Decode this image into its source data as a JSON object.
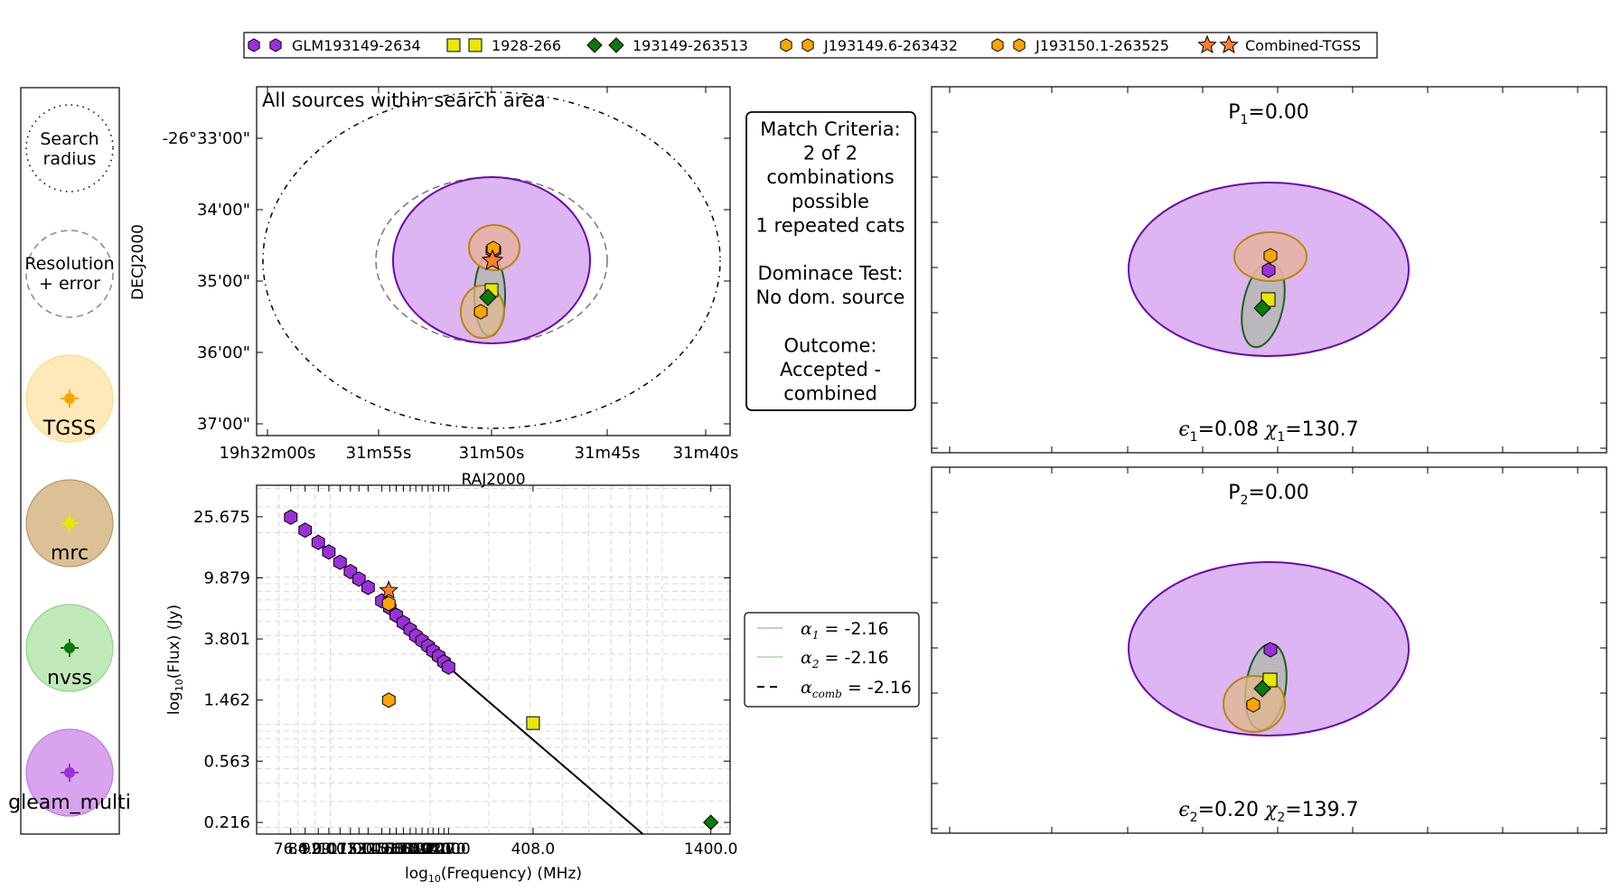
{
  "legend_top": [
    {
      "label": "GLM193149-2634",
      "marker": "hexagon",
      "color": "#9b30d9"
    },
    {
      "label": "1928-266",
      "marker": "square",
      "color": "#e8e800"
    },
    {
      "label": "193149-263513",
      "marker": "diamond",
      "color": "#0a7a0a"
    },
    {
      "label": "J193149.6-263432",
      "marker": "hexagon",
      "color": "#ffa500"
    },
    {
      "label": "J193150.1-263525",
      "marker": "hexagon",
      "color": "#ffa500"
    },
    {
      "label": "Combined-TGSS",
      "marker": "star",
      "color": "#ff7f2a"
    }
  ],
  "left_key": {
    "search": "Search radius",
    "search_lines": [
      "Search",
      "radius"
    ],
    "resolution": "Resolution + error",
    "resolution_lines": [
      "Resolution",
      "+ error"
    ],
    "catalogues": [
      {
        "name": "TGSS",
        "fill": "#ffe9b8",
        "edge": "#ffd98c",
        "marker": "#ffa500"
      },
      {
        "name": "mrc",
        "fill": "#dbc195",
        "edge": "#b8976a",
        "marker": "#e8e800"
      },
      {
        "name": "nvss",
        "fill": "#c1e8b8",
        "edge": "#8cd48c",
        "marker": "#0a7a0a"
      },
      {
        "name": "gleam_multi",
        "fill": "#d9a3ee",
        "edge": "#c27ae0",
        "marker": "#9b30d9"
      }
    ]
  },
  "sky_plot": {
    "title": "All sources within search area",
    "xlabel": "RAJ2000",
    "ylabel": "DECJ2000",
    "xticks": [
      "19h32m00s",
      "31m55s",
      "31m50s",
      "31m45s",
      "31m40s"
    ],
    "yticks": [
      "-26°33'00\"",
      "34'00\"",
      "35'00\"",
      "36'00\"",
      "37'00\""
    ]
  },
  "match_box": {
    "lines": [
      "Match Criteria:",
      "2 of 2",
      "combinations",
      "possible",
      "1 repeated cats",
      "",
      "Dominace Test:",
      "No dom. source",
      "",
      "Outcome:",
      "Accepted -",
      "combined"
    ]
  },
  "combo_panels": [
    {
      "p_label": "P",
      "p_sub": "1",
      "p_value": "=0.00",
      "eps_sub": "1",
      "eps_value": "=0.08",
      "chi_sub": "1",
      "chi_value": "=130.7"
    },
    {
      "p_label": "P",
      "p_sub": "2",
      "p_value": "=0.00",
      "eps_sub": "2",
      "eps_value": "=0.20",
      "chi_sub": "2",
      "chi_value": "=139.7"
    }
  ],
  "spectrum_legend": [
    {
      "symbol": "α",
      "sub": "1",
      "value": " = -2.16",
      "style": "blue-line"
    },
    {
      "symbol": "α",
      "sub": "2",
      "value": " = -2.16",
      "style": "green-line"
    },
    {
      "symbol": "α",
      "sub": "comb",
      "value": " = -2.16",
      "style": "dashed-black"
    }
  ],
  "chart_data": {
    "type": "scatter",
    "xlabel_pre": "log",
    "xlabel_sub": "10",
    "xlabel_post": "(Frequency) (MHz)",
    "ylabel_pre": "log",
    "ylabel_sub": "10",
    "ylabel_post": "(Flux) (Jy)",
    "x_scale": "log",
    "y_scale": "log",
    "xlim": [
      60,
      1600
    ],
    "ylim": [
      0.18,
      42
    ],
    "xtick_labels": [
      "76.0",
      "84.0",
      "92.0",
      "99.0",
      "107.0",
      "115.0",
      "122.0",
      "130.0",
      "143.0",
      "151.0",
      "158.0",
      "166.0",
      "174.0",
      "181.0",
      "189.0",
      "197.0",
      "204.0",
      "212.0",
      "220.0",
      "227.0",
      "408.0",
      "1400.0"
    ],
    "xtick_values": [
      76,
      84,
      92,
      99,
      107,
      115,
      122,
      130,
      143,
      151,
      158,
      166,
      174,
      181,
      189,
      197,
      204,
      212,
      220,
      227,
      408,
      1400
    ],
    "ytick_labels": [
      "25.675",
      "9.879",
      "3.801",
      "1.462",
      "0.563",
      "0.216"
    ],
    "ytick_values": [
      25.675,
      9.879,
      3.801,
      1.462,
      0.563,
      0.216
    ],
    "grid": true,
    "series": [
      {
        "name": "GLM193149-2634",
        "marker": "hexagon",
        "color": "#9b30d9",
        "x": [
          76,
          84,
          92,
          99,
          107,
          115,
          122,
          130,
          143,
          151,
          158,
          166,
          174,
          181,
          189,
          197,
          204,
          212,
          220,
          227
        ],
        "y": [
          25.5,
          20.8,
          17.2,
          14.8,
          12.6,
          10.9,
          9.7,
          8.5,
          6.9,
          6.2,
          5.5,
          4.9,
          4.4,
          4.0,
          3.7,
          3.4,
          3.15,
          2.9,
          2.65,
          2.45
        ]
      },
      {
        "name": "1928-266",
        "marker": "square",
        "color": "#e8e800",
        "x": [
          408
        ],
        "y": [
          1.02
        ]
      },
      {
        "name": "193149-263513",
        "marker": "diamond",
        "color": "#0a7a0a",
        "x": [
          1400
        ],
        "y": [
          0.216
        ]
      },
      {
        "name": "J193149.6-263432",
        "marker": "hexagon",
        "color": "#ffa500",
        "x": [
          150
        ],
        "y": [
          1.46
        ]
      },
      {
        "name": "J193150.1-263525",
        "marker": "hexagon",
        "color": "#ffa500",
        "x": [
          150
        ],
        "y": [
          6.6
        ]
      },
      {
        "name": "Combined-TGSS",
        "marker": "star",
        "color": "#ff7f2a",
        "x": [
          150
        ],
        "y": [
          8.1
        ]
      }
    ],
    "fit_line": {
      "x": [
        220,
        900
      ],
      "y": [
        2.6,
        0.17
      ]
    }
  }
}
